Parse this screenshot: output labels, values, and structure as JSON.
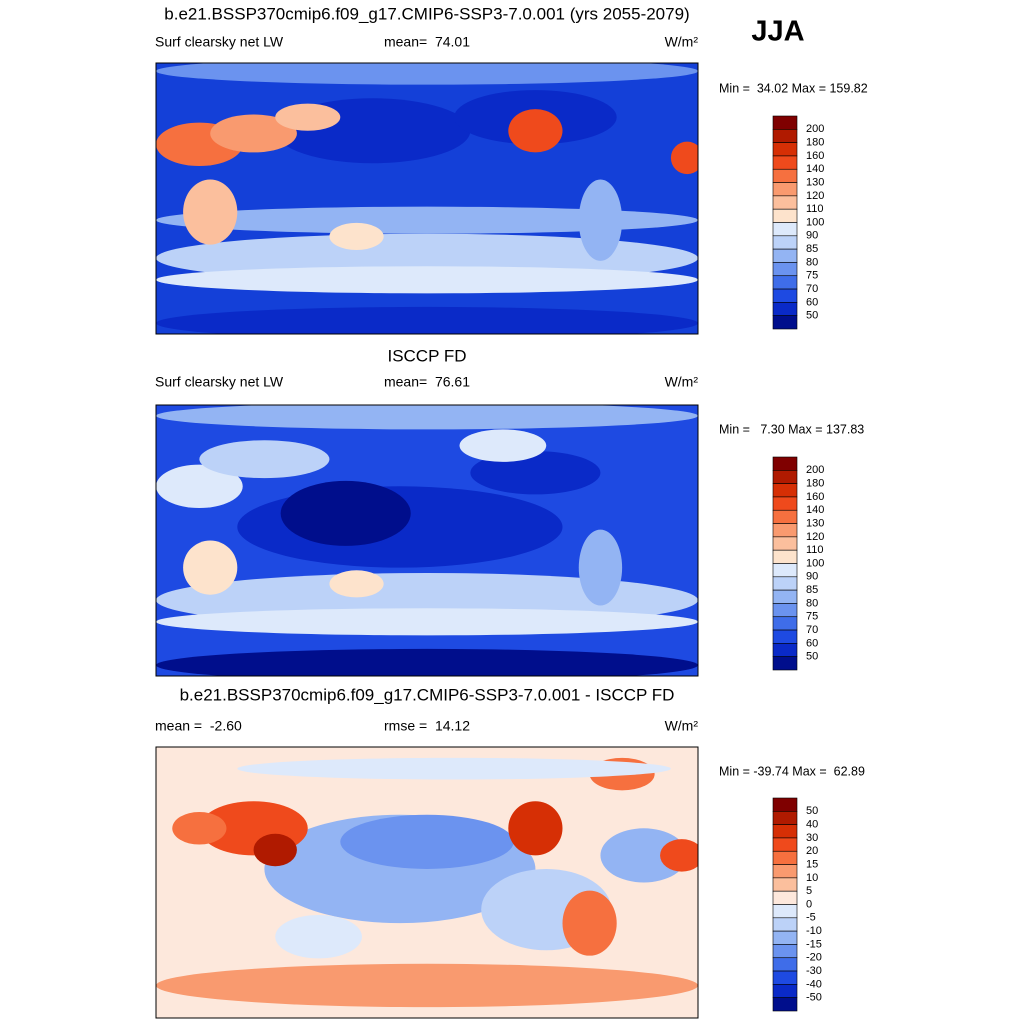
{
  "season": "JJA",
  "panels": [
    {
      "title": "b.e21.BSSP370cmip6.f09_g17.CMIP6-SSP3-7.0.001 (yrs 2055-2079)",
      "left": "Surf clearsky net LW",
      "center": "mean=  74.01",
      "right": "W/m²",
      "minmax": "Min =  34.02 Max = 159.82",
      "colorbar": {
        "labels": [
          200,
          180,
          160,
          140,
          130,
          120,
          110,
          100,
          90,
          85,
          80,
          75,
          70,
          60,
          50
        ],
        "colors": [
          "#7f0000",
          "#b01a00",
          "#d62f05",
          "#ef4a1c",
          "#f6703f",
          "#f99a6f",
          "#fbbf9d",
          "#fde3cc",
          "#dde9fb",
          "#bcd2f8",
          "#93b4f3",
          "#6b93ef",
          "#3f6de9",
          "#1e4ae2",
          "#0a2ac8",
          "#000e8c"
        ]
      }
    },
    {
      "title": "ISCCP FD",
      "left": "Surf clearsky net LW",
      "center": "mean=  76.61",
      "right": "W/m²",
      "minmax": "Min =   7.30 Max = 137.83",
      "colorbar": {
        "labels": [
          200,
          180,
          160,
          140,
          130,
          120,
          110,
          100,
          90,
          85,
          80,
          75,
          70,
          60,
          50
        ],
        "colors": [
          "#7f0000",
          "#b01a00",
          "#d62f05",
          "#ef4a1c",
          "#f6703f",
          "#f99a6f",
          "#fbbf9d",
          "#fde3cc",
          "#dde9fb",
          "#bcd2f8",
          "#93b4f3",
          "#6b93ef",
          "#3f6de9",
          "#1e4ae2",
          "#0a2ac8",
          "#000e8c"
        ]
      }
    },
    {
      "title": "b.e21.BSSP370cmip6.f09_g17.CMIP6-SSP3-7.0.001 - ISCCP FD",
      "left": "mean =  -2.60",
      "center": "rmse =  14.12",
      "right": "W/m²",
      "minmax": "Min = -39.74 Max =  62.89",
      "colorbar": {
        "labels": [
          50,
          40,
          30,
          20,
          15,
          10,
          5,
          0,
          -5,
          -10,
          -15,
          -20,
          -30,
          -40,
          -50
        ],
        "colors": [
          "#7f0000",
          "#b01a00",
          "#d62f05",
          "#ef4a1c",
          "#f6703f",
          "#f99a6f",
          "#fbbf9d",
          "#fde8dc",
          "#dde9fb",
          "#bcd2f8",
          "#93b4f3",
          "#6b93ef",
          "#3f6de9",
          "#1e4ae2",
          "#0a2ac8",
          "#000e8c"
        ]
      }
    }
  ]
}
